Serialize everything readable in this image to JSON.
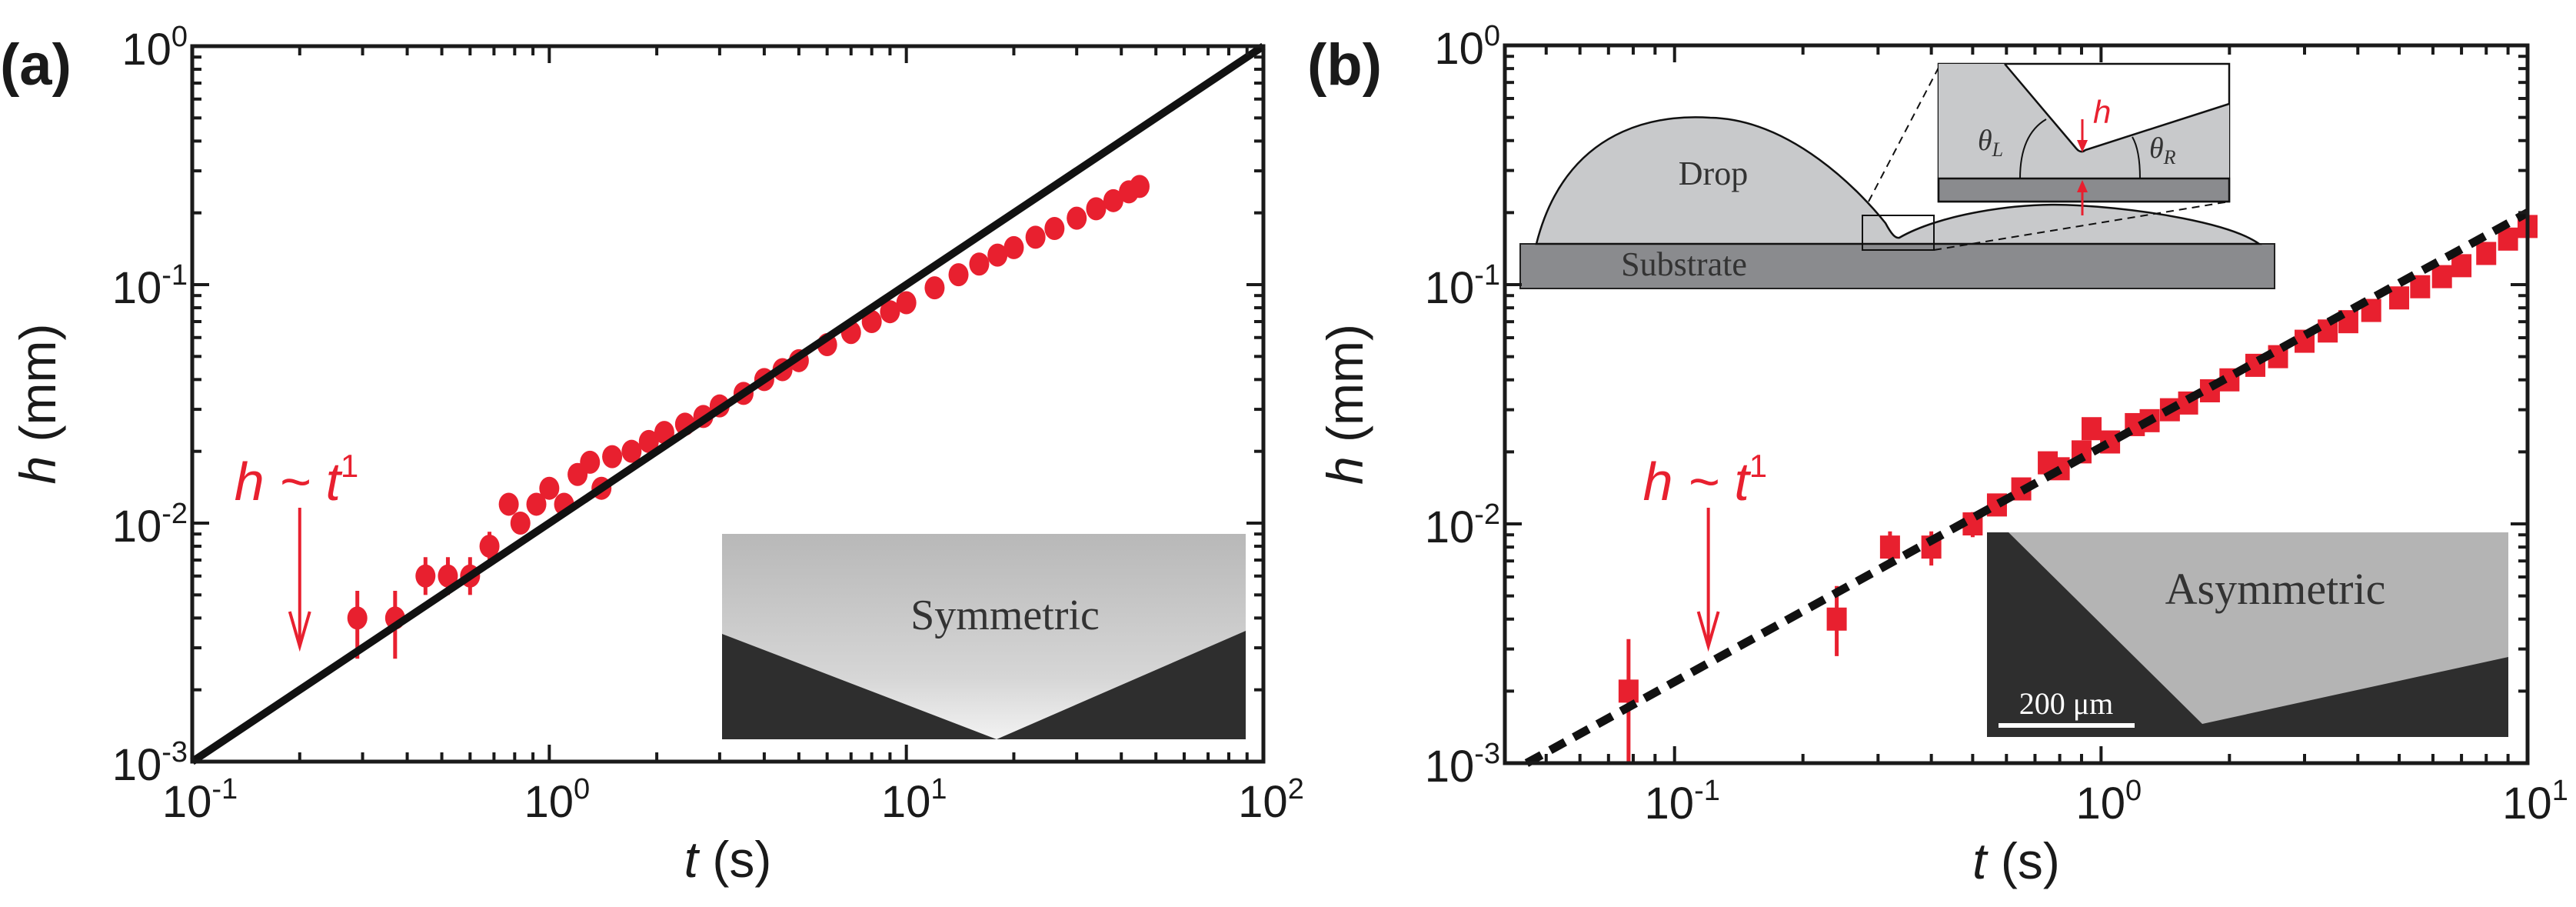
{
  "colors": {
    "data": "#e8202f",
    "line": "#111111",
    "frame": "#1a1a1a",
    "inset_dark": "#2e2e2e",
    "inset_light": "#bdbdbd",
    "drop": "#c8c9cb",
    "substrate": "#8a8b8e"
  },
  "chart_data": [
    {
      "panel_label": "(a)",
      "type": "scatter",
      "x_scale": "log",
      "y_scale": "log",
      "xlim": [
        0.1,
        100
      ],
      "ylim": [
        0.001,
        1
      ],
      "xlabel_var": "t",
      "xlabel_unit": "(s)",
      "ylabel_var": "h",
      "ylabel_unit": "(mm)",
      "xtick_labels": [
        "10^-1",
        "10^0",
        "10^1",
        "10^2"
      ],
      "ytick_labels": [
        "10^-3",
        "10^-2",
        "10^-1",
        "10^0"
      ],
      "xticks": [
        0.1,
        1,
        10,
        100
      ],
      "yticks": [
        0.001,
        0.01,
        0.1,
        1
      ],
      "grid": false,
      "marker": "circle",
      "annotation": {
        "text_var": "h ~ t",
        "text_exp": "1",
        "arrow_at_t": 0.2
      },
      "fit_line": {
        "style": "solid",
        "x": [
          0.1,
          100
        ],
        "y": [
          0.001,
          1
        ]
      },
      "series": {
        "x": [
          0.29,
          0.37,
          0.45,
          0.52,
          0.6,
          0.68,
          0.77,
          0.83,
          0.92,
          1.0,
          1.1,
          1.2,
          1.3,
          1.4,
          1.5,
          1.7,
          1.9,
          2.1,
          2.4,
          2.7,
          3.0,
          3.5,
          4.0,
          4.5,
          5,
          6,
          7,
          8,
          9,
          10,
          12,
          14,
          16,
          18,
          20,
          23,
          26,
          30,
          34,
          38,
          42,
          45
        ],
        "y": [
          0.004,
          0.004,
          0.006,
          0.006,
          0.006,
          0.008,
          0.012,
          0.01,
          0.012,
          0.014,
          0.012,
          0.016,
          0.018,
          0.014,
          0.019,
          0.02,
          0.022,
          0.024,
          0.026,
          0.028,
          0.031,
          0.035,
          0.04,
          0.044,
          0.048,
          0.056,
          0.063,
          0.07,
          0.077,
          0.084,
          0.097,
          0.11,
          0.122,
          0.133,
          0.143,
          0.158,
          0.172,
          0.19,
          0.208,
          0.225,
          0.245,
          0.258
        ],
        "err_low": [
          0.0027,
          0.0027,
          0.005,
          0.005,
          0.005,
          0.007,
          null,
          null,
          null,
          null,
          null,
          null,
          null,
          null,
          null,
          null,
          null,
          null,
          null,
          null,
          null,
          null,
          null,
          null,
          null,
          null,
          null,
          null,
          null,
          null,
          null,
          null,
          null,
          null,
          null,
          null,
          null,
          null,
          null,
          null,
          null,
          null
        ],
        "err_high": [
          0.0052,
          0.0052,
          0.0072,
          0.0072,
          0.0072,
          0.0092,
          null,
          null,
          null,
          null,
          null,
          null,
          null,
          null,
          null,
          null,
          null,
          null,
          null,
          null,
          null,
          null,
          null,
          null,
          null,
          null,
          null,
          null,
          null,
          null,
          null,
          null,
          null,
          null,
          null,
          null,
          null,
          null,
          null,
          null,
          null,
          null
        ]
      },
      "inset": {
        "label": "Symmetric"
      }
    },
    {
      "panel_label": "(b)",
      "type": "scatter",
      "x_scale": "log",
      "y_scale": "log",
      "xlim": [
        0.04,
        10
      ],
      "ylim": [
        0.001,
        1
      ],
      "xlabel_var": "t",
      "xlabel_unit": "(s)",
      "ylabel_var": "h",
      "ylabel_unit": "(mm)",
      "xtick_labels": [
        "10^-1",
        "10^0",
        "10^1"
      ],
      "ytick_labels": [
        "10^-3",
        "10^-2",
        "10^-1",
        "10^0"
      ],
      "xticks": [
        0.1,
        1,
        10
      ],
      "yticks": [
        0.001,
        0.01,
        0.1,
        1
      ],
      "grid": false,
      "marker": "square",
      "annotation": {
        "text_var": "h ~ t",
        "text_exp": "1",
        "arrow_at_t": 0.12
      },
      "fit_line": {
        "style": "dashed",
        "x": [
          0.045,
          10
        ],
        "y": [
          0.001,
          0.2
        ]
      },
      "series": {
        "x": [
          0.078,
          0.24,
          0.32,
          0.4,
          0.5,
          0.57,
          0.65,
          0.75,
          0.8,
          0.9,
          0.95,
          1.05,
          1.2,
          1.3,
          1.45,
          1.6,
          1.8,
          2.0,
          2.3,
          2.6,
          3.0,
          3.4,
          3.8,
          4.3,
          5.0,
          5.6,
          6.3,
          7.0,
          8.0,
          9.0,
          10.0
        ],
        "y": [
          0.002,
          0.004,
          0.008,
          0.008,
          0.01,
          0.012,
          0.014,
          0.018,
          0.017,
          0.02,
          0.025,
          0.022,
          0.026,
          0.027,
          0.03,
          0.032,
          0.036,
          0.04,
          0.046,
          0.05,
          0.058,
          0.064,
          0.07,
          0.078,
          0.088,
          0.098,
          0.108,
          0.12,
          0.135,
          0.155,
          0.175
        ],
        "err_low": [
          0.001,
          0.0028,
          0.0068,
          0.0067,
          0.0088,
          null,
          null,
          null,
          null,
          null,
          null,
          null,
          null,
          null,
          null,
          null,
          null,
          null,
          null,
          null,
          null,
          null,
          null,
          null,
          null,
          null,
          null,
          null,
          null,
          null,
          null
        ],
        "err_high": [
          0.0033,
          0.0055,
          0.0093,
          0.0093,
          0.0112,
          null,
          null,
          null,
          null,
          null,
          null,
          null,
          null,
          null,
          null,
          null,
          null,
          null,
          null,
          null,
          null,
          null,
          null,
          null,
          null,
          null,
          null,
          null,
          null,
          null,
          null
        ]
      },
      "inset": {
        "label": "Asymmetric",
        "scale_bar": "200 μm"
      },
      "schematic": {
        "drop_label": "Drop",
        "substrate_label": "Substrate",
        "theta_left": "θ",
        "theta_left_sub": "L",
        "theta_right": "θ",
        "theta_right_sub": "R",
        "gap_label": "h"
      }
    }
  ]
}
